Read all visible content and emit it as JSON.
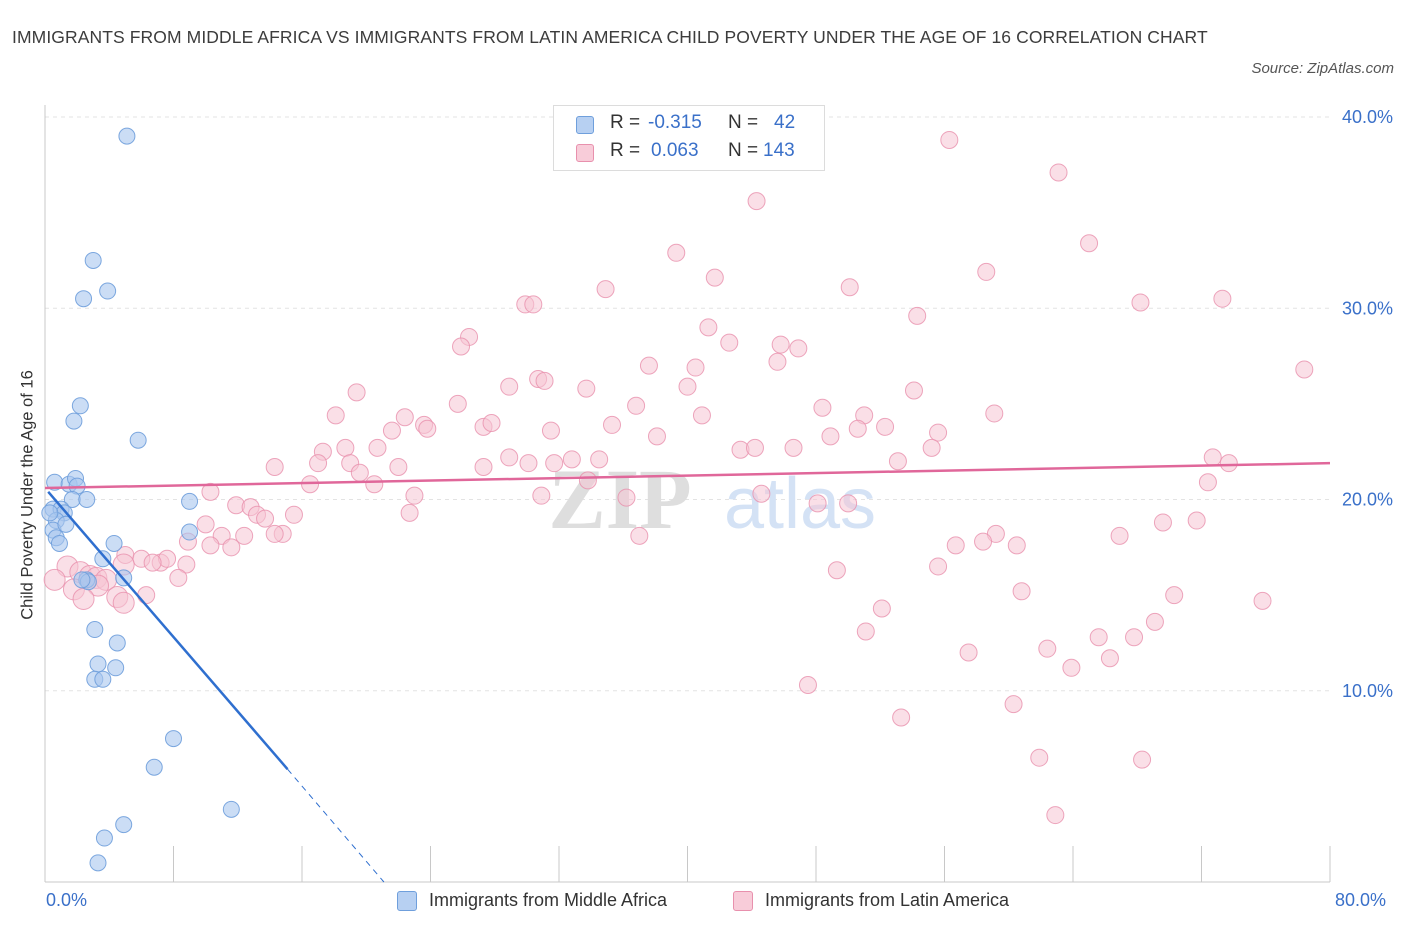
{
  "title": "IMMIGRANTS FROM MIDDLE AFRICA VS IMMIGRANTS FROM LATIN AMERICA CHILD POVERTY UNDER THE AGE OF 16 CORRELATION CHART",
  "source": "Source: ZipAtlas.com",
  "legend_top": {
    "rows": [
      {
        "r_label": "R =",
        "r_value": "-0.315",
        "n_label": "N =",
        "n_value": "42"
      },
      {
        "r_label": "R =",
        "r_value": "0.063",
        "n_label": "N =",
        "n_value": "143"
      }
    ]
  },
  "legend_bottom": [
    "Immigrants from Middle Africa",
    "Immigrants from Latin America"
  ],
  "colors": {
    "blue_fill": "#a9c7ee",
    "blue_stroke": "#6f9fdc",
    "blue_line": "#2f6fcf",
    "pink_fill": "#f6c4d3",
    "pink_stroke": "#e890ad",
    "pink_line": "#e0679a",
    "axis_text": "#3a70c9",
    "grid": "#e3e3e3"
  },
  "chart_data": {
    "type": "scatter",
    "title": "IMMIGRANTS FROM MIDDLE AFRICA VS IMMIGRANTS FROM LATIN AMERICA CHILD POVERTY UNDER THE AGE OF 16 CORRELATION CHART",
    "xlabel": "",
    "ylabel": "Child Poverty Under the Age of 16",
    "xlim": [
      0,
      80
    ],
    "ylim": [
      0,
      40
    ],
    "x_tick_labels": [
      "0.0%",
      "80.0%"
    ],
    "y_tick_labels": [
      "10.0%",
      "20.0%",
      "30.0%",
      "40.0%"
    ],
    "y_ticks": [
      10,
      20,
      30,
      40
    ],
    "watermark": "ZIPatlas",
    "series": [
      {
        "name": "Immigrants from Middle Africa",
        "r": -0.315,
        "n": 42,
        "trend": {
          "x0": 0.2,
          "y0": 20.4,
          "x1": 15.1,
          "y1": 5.9,
          "dash_to_x": 21.1,
          "dash_to_y": 0
        },
        "points": [
          [
            5.1,
            39.0
          ],
          [
            3.0,
            32.5
          ],
          [
            2.4,
            30.5
          ],
          [
            3.9,
            30.9
          ],
          [
            2.2,
            24.9
          ],
          [
            1.8,
            24.1
          ],
          [
            5.8,
            23.1
          ],
          [
            0.6,
            20.9
          ],
          [
            1.5,
            20.8
          ],
          [
            1.9,
            21.1
          ],
          [
            2.0,
            20.7
          ],
          [
            1.7,
            20.0
          ],
          [
            2.6,
            20.0
          ],
          [
            0.5,
            19.5
          ],
          [
            1.0,
            19.5
          ],
          [
            1.2,
            19.3
          ],
          [
            0.7,
            18.9
          ],
          [
            0.5,
            18.4
          ],
          [
            0.7,
            18.0
          ],
          [
            0.9,
            17.7
          ],
          [
            1.3,
            18.7
          ],
          [
            9.0,
            19.9
          ],
          [
            9.0,
            18.3
          ],
          [
            4.3,
            17.7
          ],
          [
            3.6,
            16.9
          ],
          [
            2.6,
            15.8
          ],
          [
            2.7,
            15.7
          ],
          [
            4.9,
            15.9
          ],
          [
            3.1,
            13.2
          ],
          [
            4.5,
            12.5
          ],
          [
            3.3,
            11.4
          ],
          [
            4.4,
            11.2
          ],
          [
            3.1,
            10.6
          ],
          [
            3.6,
            10.6
          ],
          [
            8.0,
            7.5
          ],
          [
            6.8,
            6.0
          ],
          [
            11.6,
            3.8
          ],
          [
            4.9,
            3.0
          ],
          [
            3.7,
            2.3
          ],
          [
            3.3,
            1.0
          ],
          [
            0.3,
            19.3
          ],
          [
            2.3,
            15.8
          ]
        ]
      },
      {
        "name": "Immigrants from Latin America",
        "r": 0.063,
        "n": 143,
        "trend": {
          "x0": 0,
          "y0": 20.6,
          "x1": 80,
          "y1": 21.9
        },
        "points": [
          [
            56.3,
            38.8
          ],
          [
            63.1,
            37.1
          ],
          [
            44.3,
            35.6
          ],
          [
            65.0,
            33.4
          ],
          [
            39.3,
            32.9
          ],
          [
            58.6,
            31.9
          ],
          [
            41.7,
            31.6
          ],
          [
            34.9,
            31.0
          ],
          [
            50.1,
            31.1
          ],
          [
            29.9,
            30.2
          ],
          [
            30.4,
            30.2
          ],
          [
            68.2,
            30.3
          ],
          [
            73.3,
            30.5
          ],
          [
            54.3,
            29.6
          ],
          [
            41.3,
            29.0
          ],
          [
            26.4,
            28.5
          ],
          [
            42.6,
            28.2
          ],
          [
            45.8,
            28.1
          ],
          [
            25.9,
            28.0
          ],
          [
            46.9,
            27.9
          ],
          [
            45.6,
            27.2
          ],
          [
            37.6,
            27.0
          ],
          [
            40.5,
            26.9
          ],
          [
            78.4,
            26.8
          ],
          [
            30.7,
            26.3
          ],
          [
            31.1,
            26.2
          ],
          [
            28.9,
            25.9
          ],
          [
            40.0,
            25.9
          ],
          [
            33.7,
            25.8
          ],
          [
            54.1,
            25.7
          ],
          [
            19.4,
            25.6
          ],
          [
            25.7,
            25.0
          ],
          [
            36.8,
            24.9
          ],
          [
            48.4,
            24.8
          ],
          [
            18.1,
            24.4
          ],
          [
            22.4,
            24.3
          ],
          [
            40.9,
            24.4
          ],
          [
            51.0,
            24.4
          ],
          [
            59.1,
            24.5
          ],
          [
            23.6,
            23.9
          ],
          [
            27.3,
            23.8
          ],
          [
            21.6,
            23.6
          ],
          [
            23.8,
            23.7
          ],
          [
            27.8,
            24.0
          ],
          [
            35.3,
            23.9
          ],
          [
            31.5,
            23.6
          ],
          [
            50.6,
            23.7
          ],
          [
            52.3,
            23.8
          ],
          [
            55.6,
            23.5
          ],
          [
            48.9,
            23.3
          ],
          [
            38.1,
            23.3
          ],
          [
            20.7,
            22.7
          ],
          [
            17.3,
            22.5
          ],
          [
            18.7,
            22.7
          ],
          [
            34.5,
            22.1
          ],
          [
            43.3,
            22.6
          ],
          [
            44.2,
            22.7
          ],
          [
            46.6,
            22.7
          ],
          [
            55.2,
            22.7
          ],
          [
            28.9,
            22.2
          ],
          [
            72.7,
            22.2
          ],
          [
            73.7,
            21.9
          ],
          [
            17.0,
            21.9
          ],
          [
            19.0,
            21.9
          ],
          [
            30.1,
            21.9
          ],
          [
            31.7,
            21.9
          ],
          [
            32.8,
            22.1
          ],
          [
            53.1,
            22.0
          ],
          [
            14.3,
            21.7
          ],
          [
            22.0,
            21.7
          ],
          [
            27.3,
            21.7
          ],
          [
            19.6,
            21.4
          ],
          [
            20.5,
            20.8
          ],
          [
            16.5,
            20.8
          ],
          [
            33.8,
            21.0
          ],
          [
            72.4,
            20.9
          ],
          [
            10.3,
            20.4
          ],
          [
            23.0,
            20.2
          ],
          [
            30.9,
            20.2
          ],
          [
            36.2,
            20.1
          ],
          [
            44.6,
            20.3
          ],
          [
            48.1,
            19.8
          ],
          [
            50.0,
            19.8
          ],
          [
            11.9,
            19.7
          ],
          [
            12.8,
            19.6
          ],
          [
            13.2,
            19.2
          ],
          [
            22.7,
            19.3
          ],
          [
            15.5,
            19.2
          ],
          [
            69.6,
            18.8
          ],
          [
            71.7,
            18.9
          ],
          [
            10.0,
            18.7
          ],
          [
            13.7,
            19.0
          ],
          [
            14.8,
            18.2
          ],
          [
            14.3,
            18.2
          ],
          [
            11.0,
            18.1
          ],
          [
            12.4,
            18.1
          ],
          [
            8.9,
            17.8
          ],
          [
            10.3,
            17.6
          ],
          [
            11.6,
            17.5
          ],
          [
            37.0,
            18.1
          ],
          [
            59.2,
            18.2
          ],
          [
            66.9,
            18.1
          ],
          [
            56.7,
            17.6
          ],
          [
            58.4,
            17.8
          ],
          [
            60.5,
            17.6
          ],
          [
            5.0,
            17.1
          ],
          [
            6.0,
            16.9
          ],
          [
            7.2,
            16.7
          ],
          [
            7.6,
            16.9
          ],
          [
            6.7,
            16.7
          ],
          [
            4.9,
            16.6
          ],
          [
            8.8,
            16.6
          ],
          [
            1.4,
            16.5
          ],
          [
            2.2,
            16.2
          ],
          [
            2.8,
            16.0
          ],
          [
            0.6,
            15.8
          ],
          [
            3.2,
            15.9
          ],
          [
            8.3,
            15.9
          ],
          [
            3.8,
            15.8
          ],
          [
            55.6,
            16.5
          ],
          [
            49.3,
            16.3
          ],
          [
            1.8,
            15.3
          ],
          [
            3.3,
            15.5
          ],
          [
            4.5,
            14.9
          ],
          [
            6.3,
            15.0
          ],
          [
            2.4,
            14.8
          ],
          [
            4.9,
            14.6
          ],
          [
            60.8,
            15.2
          ],
          [
            70.3,
            15.0
          ],
          [
            75.8,
            14.7
          ],
          [
            52.1,
            14.3
          ],
          [
            69.1,
            13.6
          ],
          [
            51.1,
            13.1
          ],
          [
            62.4,
            12.2
          ],
          [
            65.6,
            12.8
          ],
          [
            67.8,
            12.8
          ],
          [
            57.5,
            12.0
          ],
          [
            66.3,
            11.7
          ],
          [
            63.9,
            11.2
          ],
          [
            47.5,
            10.3
          ],
          [
            60.3,
            9.3
          ],
          [
            53.3,
            8.6
          ],
          [
            61.9,
            6.5
          ],
          [
            68.3,
            6.4
          ],
          [
            62.9,
            3.5
          ]
        ]
      }
    ]
  }
}
